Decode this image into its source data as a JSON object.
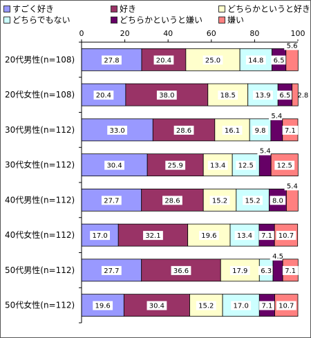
{
  "chart_data": {
    "type": "bar",
    "orientation": "horizontal",
    "stacked": true,
    "percent_stacked": true,
    "xlim": [
      0,
      100
    ],
    "xticks": [
      0,
      20,
      40,
      60,
      80,
      100
    ],
    "grid": false,
    "legend_position": "top",
    "categories": [
      "20代男性(n=108)",
      "20代女性(n=108)",
      "30代男性(n=112)",
      "30代女性(n=112)",
      "40代男性(n=112)",
      "40代女性(n=112)",
      "50代男性(n=112)",
      "50代女性(n=112)"
    ],
    "series": [
      {
        "name": "すごく好き",
        "color": "#9999ff",
        "values": [
          27.8,
          20.4,
          33.0,
          30.4,
          27.7,
          17.0,
          27.7,
          19.6
        ]
      },
      {
        "name": "好き",
        "color": "#993366",
        "values": [
          20.4,
          38.0,
          28.6,
          25.9,
          28.6,
          32.1,
          36.6,
          30.4
        ]
      },
      {
        "name": "どちらかというと好き",
        "color": "#ffffcc",
        "values": [
          25.0,
          18.5,
          16.1,
          13.4,
          15.2,
          19.6,
          17.9,
          15.2
        ]
      },
      {
        "name": "どちらでもない",
        "color": "#ccffff",
        "values": [
          14.8,
          13.9,
          9.8,
          12.5,
          15.2,
          13.4,
          6.3,
          17.0
        ]
      },
      {
        "name": "どちらかというと嫌い",
        "color": "#660066",
        "values": [
          6.5,
          6.5,
          5.4,
          5.4,
          8.0,
          7.1,
          4.5,
          7.1
        ]
      },
      {
        "name": "嫌い",
        "color": "#ff8080",
        "values": [
          5.6,
          2.8,
          7.1,
          12.5,
          5.4,
          10.7,
          7.1,
          10.7
        ]
      }
    ]
  }
}
